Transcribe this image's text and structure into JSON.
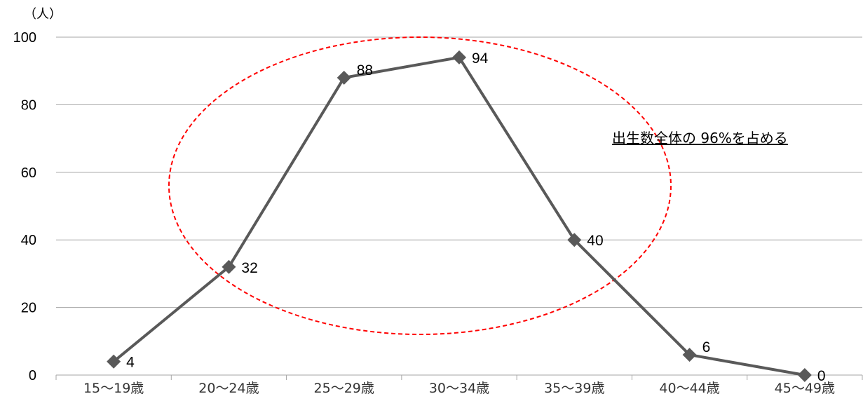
{
  "chart_data": {
    "type": "line",
    "title": "",
    "xlabel": "",
    "ylabel": "（人）",
    "ylim": [
      0,
      100
    ],
    "yticks": [
      0,
      20,
      40,
      60,
      80,
      100
    ],
    "categories": [
      "15～19歳",
      "20～24歳",
      "25～29歳",
      "30～34歳",
      "35～39歳",
      "40～44歳",
      "45～49歳"
    ],
    "series": [
      {
        "values": [
          4,
          32,
          88,
          94,
          40,
          6,
          0
        ]
      }
    ],
    "grid": true,
    "legend": "none",
    "annotation": "出生数全体の 96%を占める",
    "colors": {
      "line": "#595959",
      "marker": "#595959",
      "grid": "#a6a6a6",
      "ellipse": "#ff0000"
    }
  }
}
